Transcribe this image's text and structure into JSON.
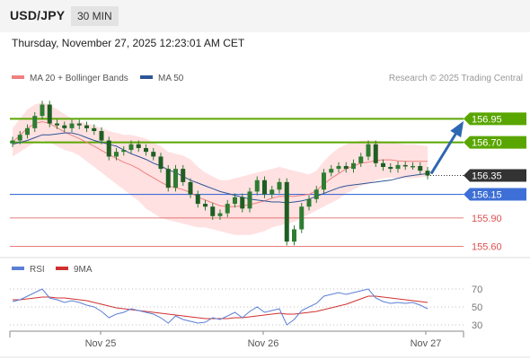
{
  "header": {
    "symbol": "USD/JPY",
    "timeframe": "30 MIN"
  },
  "timestamp": "Thursday, November 27, 2025 12:23:01 AM CET",
  "colors": {
    "ma20": "#f08080",
    "ma50": "#2f5597",
    "bands_fill": "#ffd4d4",
    "candle": "#2e7d32",
    "resistance": "#5aa600",
    "support_blue": "#3d6fd6",
    "support_red": "#e05050",
    "current": "#333333",
    "arrow": "#2e67b1",
    "rsi": "#5b7fd6",
    "rsi_ma": "#d03030"
  },
  "chart_data": [
    {
      "type": "line",
      "title": "",
      "legend": [
        {
          "name": "MA 20 + Bollinger Bands",
          "color": "#f08080"
        },
        {
          "name": "MA 50",
          "color": "#2f5597"
        }
      ],
      "legend_position": "top-left",
      "watermark": "Research © 2025 Trading Central",
      "ylim": [
        155.5,
        157.2
      ],
      "grid": false,
      "x_ticks": [
        "Nov 25",
        "Nov 26",
        "Nov 27"
      ],
      "series": [
        {
          "name": "Price",
          "values": [
            156.72,
            156.78,
            156.85,
            156.98,
            157.1,
            156.9,
            156.88,
            156.85,
            156.9,
            156.88,
            156.85,
            156.82,
            156.72,
            156.55,
            156.6,
            156.62,
            156.68,
            156.64,
            156.6,
            156.55,
            156.42,
            156.22,
            156.42,
            156.28,
            156.15,
            156.05,
            156.02,
            155.92,
            155.95,
            156.05,
            156.12,
            156.0,
            156.18,
            156.3,
            156.15,
            156.2,
            156.28,
            155.65,
            155.78,
            156.02,
            156.1,
            156.2,
            156.38,
            156.42,
            156.45,
            156.42,
            156.48,
            156.55,
            156.68,
            156.48,
            156.44,
            156.42,
            156.46,
            156.45,
            156.45,
            156.4,
            156.35
          ]
        },
        {
          "name": "MA 50",
          "values": [
            156.68,
            156.7,
            156.72,
            156.75,
            156.78,
            156.78,
            156.79,
            156.8,
            156.8,
            156.78,
            156.75,
            156.72,
            156.7,
            156.68,
            156.66,
            156.62,
            156.58,
            156.55,
            156.52,
            156.48,
            156.45,
            156.41,
            156.38,
            156.34,
            156.3,
            156.27,
            156.24,
            156.21,
            156.18,
            156.16,
            156.14,
            156.12,
            156.1,
            156.09,
            156.08,
            156.07,
            156.07,
            156.06,
            156.07,
            156.08,
            156.1,
            156.13,
            156.16,
            156.19,
            156.22,
            156.24,
            156.25,
            156.26,
            156.27,
            156.28,
            156.29,
            156.3,
            156.32,
            156.34,
            156.35,
            156.36,
            156.37
          ]
        },
        {
          "name": "Upper band",
          "values": [
            156.85,
            156.95,
            157.05,
            157.1,
            157.12,
            157.1,
            157.05,
            157.0,
            156.95,
            156.92,
            156.9,
            156.88,
            156.85,
            156.82,
            156.8,
            156.78,
            156.78,
            156.76,
            156.74,
            156.7,
            156.66,
            156.6,
            156.58,
            156.56,
            156.52,
            156.44,
            156.38,
            156.34,
            156.3,
            156.3,
            156.32,
            156.34,
            156.36,
            156.38,
            156.4,
            156.42,
            156.44,
            156.42,
            156.4,
            156.38,
            156.36,
            156.4,
            156.5,
            156.58,
            156.64,
            156.68,
            156.7,
            156.72,
            156.72,
            156.72,
            156.71,
            156.7,
            156.69,
            156.68,
            156.68,
            156.67,
            156.66
          ]
        },
        {
          "name": "Lower band",
          "values": [
            156.55,
            156.6,
            156.65,
            156.7,
            156.72,
            156.7,
            156.66,
            156.62,
            156.6,
            156.56,
            156.5,
            156.44,
            156.38,
            156.32,
            156.26,
            156.2,
            156.14,
            156.08,
            156.0,
            155.95,
            155.9,
            155.88,
            155.86,
            155.84,
            155.82,
            155.8,
            155.8,
            155.78,
            155.76,
            155.74,
            155.72,
            155.72,
            155.72,
            155.74,
            155.76,
            155.8,
            155.82,
            155.84,
            155.86,
            155.9,
            155.94,
            155.98,
            156.02,
            156.06,
            156.1,
            156.16,
            156.2,
            156.24,
            156.26,
            156.3,
            156.32,
            156.33,
            156.32,
            156.32,
            156.32,
            156.33,
            156.34
          ]
        }
      ],
      "levels": [
        {
          "label": "156.95",
          "value": 156.95,
          "kind": "resistance"
        },
        {
          "label": "156.70",
          "value": 156.7,
          "kind": "resistance"
        },
        {
          "label": "156.35",
          "value": 156.35,
          "kind": "current"
        },
        {
          "label": "156.15",
          "value": 156.15,
          "kind": "support_blue"
        },
        {
          "label": "155.90",
          "value": 155.9,
          "kind": "support_red"
        },
        {
          "label": "155.60",
          "value": 155.6,
          "kind": "support_red"
        }
      ],
      "forecast_arrow": {
        "from": 156.35,
        "to": 156.95
      }
    },
    {
      "type": "line",
      "title": "",
      "legend": [
        {
          "name": "RSI",
          "color": "#5b7fd6"
        },
        {
          "name": "9MA",
          "color": "#d03030"
        }
      ],
      "legend_position": "top-left",
      "ylim": [
        25,
        80
      ],
      "y_ticks": [
        "70",
        "50",
        "30"
      ],
      "series": [
        {
          "name": "RSI",
          "values": [
            56,
            58,
            62,
            66,
            70,
            60,
            58,
            55,
            57,
            55,
            52,
            50,
            45,
            38,
            42,
            44,
            48,
            46,
            44,
            42,
            38,
            32,
            40,
            36,
            34,
            32,
            33,
            38,
            36,
            40,
            44,
            38,
            45,
            50,
            44,
            46,
            48,
            30,
            36,
            46,
            50,
            54,
            62,
            64,
            66,
            64,
            66,
            68,
            70,
            60,
            56,
            54,
            55,
            54,
            55,
            52,
            48
          ]
        },
        {
          "name": "9MA",
          "values": [
            58,
            58,
            59,
            60,
            61,
            61,
            60,
            60,
            59,
            58,
            57,
            55,
            53,
            51,
            49,
            48,
            47,
            46,
            45,
            44,
            43,
            42,
            41,
            40,
            39,
            38,
            37,
            37,
            37,
            37,
            38,
            38,
            39,
            40,
            41,
            42,
            43,
            42,
            42,
            43,
            44,
            45,
            47,
            49,
            51,
            53,
            56,
            59,
            62,
            62,
            61,
            60,
            59,
            58,
            57,
            56,
            55
          ]
        }
      ]
    }
  ]
}
